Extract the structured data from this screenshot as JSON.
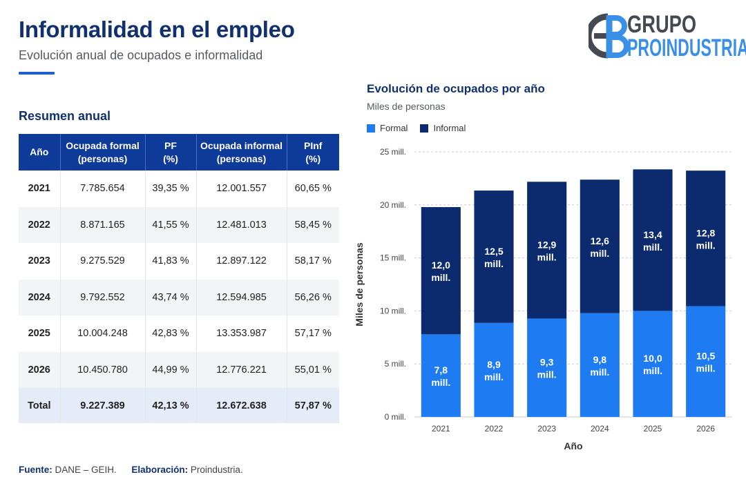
{
  "header": {
    "title": "Informalidad en el empleo",
    "subtitle": "Evolución anual de ocupados e informalidad"
  },
  "logo": {
    "line1": "GRUPO",
    "line2": "PROINDUSTRIA"
  },
  "table": {
    "title": "Resumen anual",
    "headers": [
      {
        "l1": "Año",
        "l2": ""
      },
      {
        "l1": "Ocupada formal",
        "l2": "(personas)"
      },
      {
        "l1": "PF",
        "l2": "(%)"
      },
      {
        "l1": "Ocupada informal",
        "l2": "(personas)"
      },
      {
        "l1": "PInf",
        "l2": "(%)"
      }
    ],
    "rows": [
      [
        "2021",
        "7.785.654",
        "39,35 %",
        "12.001.557",
        "60,65 %"
      ],
      [
        "2022",
        "8.871.165",
        "41,55 %",
        "12.481.013",
        "58,45 %"
      ],
      [
        "2023",
        "9.275.529",
        "41,83 %",
        "12.897.122",
        "58,17 %"
      ],
      [
        "2024",
        "9.792.552",
        "43,74 %",
        "12.594.985",
        "56,26 %"
      ],
      [
        "2025",
        "10.004.248",
        "42,83 %",
        "13.353.987",
        "57,17 %"
      ],
      [
        "2026",
        "10.450.780",
        "44,99 %",
        "12.776.221",
        "55,01 %"
      ]
    ],
    "total": [
      "Total",
      "9.227.389",
      "42,13 %",
      "12.672.638",
      "57,87 %"
    ]
  },
  "colors": {
    "formal": "#1e7bf2",
    "informal": "#0b2b6e",
    "grid": "#c9ccd2"
  },
  "chart_data": {
    "type": "bar",
    "stacked": true,
    "title": "Evolución de ocupados por año",
    "subtitle": "Miles de personas",
    "xlabel": "Año",
    "ylabel": "Miles de personas",
    "categories": [
      "2021",
      "2022",
      "2023",
      "2024",
      "2025",
      "2026"
    ],
    "ylim": [
      0,
      25
    ],
    "yticks": [
      0,
      5,
      10,
      15,
      20,
      25
    ],
    "ytick_labels": [
      "0 mill.",
      "5 mill.",
      "10 mill.",
      "15 mill.",
      "20 mill.",
      "25 mill."
    ],
    "grid": true,
    "legend_position": "top-left",
    "series": [
      {
        "name": "Formal",
        "values": [
          7.79,
          8.87,
          9.28,
          9.79,
          10.0,
          10.45
        ],
        "labels": [
          "7,8",
          "8,9",
          "9,3",
          "9,8",
          "10,0",
          "10,5"
        ]
      },
      {
        "name": "Informal",
        "values": [
          12.0,
          12.48,
          12.9,
          12.59,
          13.35,
          12.78
        ],
        "labels": [
          "12,0",
          "12,5",
          "12,9",
          "12,6",
          "13,4",
          "12,8"
        ]
      }
    ],
    "label_unit": "mill."
  },
  "footer": {
    "source_label": "Fuente:",
    "source_value": "DANE – GEIH.",
    "author_label": "Elaboración:",
    "author_value": "Proindustria."
  }
}
